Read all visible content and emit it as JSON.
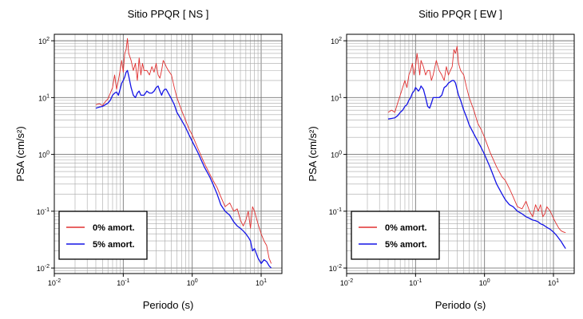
{
  "chart_data": [
    {
      "type": "line",
      "title": "Sitio PPQR [ NS ]",
      "xlabel": "Periodo (s)",
      "ylabel": "PSA (cm/s²)",
      "xscale": "log",
      "yscale": "log",
      "xlim": [
        0.01,
        20
      ],
      "ylim": [
        0.008,
        130
      ],
      "grid": true,
      "legend_position": "bottom-left",
      "xticks": [
        {
          "value": 0.01,
          "base": "10",
          "exp": "-2"
        },
        {
          "value": 0.1,
          "base": "10",
          "exp": "-1"
        },
        {
          "value": 1,
          "base": "10",
          "exp": "0"
        },
        {
          "value": 10,
          "base": "10",
          "exp": "1"
        }
      ],
      "yticks": [
        {
          "value": 0.01,
          "base": "10",
          "exp": "-2"
        },
        {
          "value": 0.1,
          "base": "10",
          "exp": "-1"
        },
        {
          "value": 1,
          "base": "10",
          "exp": "0"
        },
        {
          "value": 10,
          "base": "10",
          "exp": "1"
        },
        {
          "value": 100,
          "base": "10",
          "exp": "2"
        }
      ],
      "series": [
        {
          "name": "0% amort.",
          "color": "#e03030",
          "x": [
            0.04,
            0.045,
            0.05,
            0.055,
            0.06,
            0.065,
            0.07,
            0.075,
            0.08,
            0.085,
            0.09,
            0.095,
            0.1,
            0.105,
            0.11,
            0.115,
            0.12,
            0.13,
            0.14,
            0.15,
            0.16,
            0.17,
            0.18,
            0.19,
            0.2,
            0.22,
            0.24,
            0.26,
            0.28,
            0.3,
            0.32,
            0.34,
            0.36,
            0.38,
            0.4,
            0.42,
            0.45,
            0.5,
            0.55,
            0.6,
            0.7,
            0.8,
            0.9,
            1.0,
            1.2,
            1.5,
            1.8,
            2.0,
            2.3,
            2.6,
            3.0,
            3.5,
            4.0,
            4.5,
            5.0,
            5.5,
            6.0,
            6.5,
            7.0,
            7.5,
            8.0,
            9.0,
            10,
            11,
            12,
            13,
            14
          ],
          "y": [
            7.5,
            7.8,
            7.2,
            8.5,
            9.5,
            12,
            15,
            25,
            14,
            20,
            30,
            45,
            28,
            60,
            70,
            110,
            60,
            45,
            30,
            40,
            20,
            50,
            25,
            40,
            30,
            30,
            25,
            35,
            28,
            40,
            25,
            22,
            30,
            45,
            40,
            35,
            30,
            25,
            15,
            10,
            6,
            4,
            2.8,
            2.2,
            1.3,
            0.7,
            0.45,
            0.35,
            0.26,
            0.18,
            0.12,
            0.14,
            0.1,
            0.11,
            0.07,
            0.055,
            0.07,
            0.1,
            0.05,
            0.12,
            0.1,
            0.06,
            0.04,
            0.03,
            0.025,
            0.015,
            0.012
          ]
        },
        {
          "name": "5% amort.",
          "color": "#1414e6",
          "x": [
            0.04,
            0.045,
            0.05,
            0.055,
            0.06,
            0.065,
            0.07,
            0.075,
            0.08,
            0.085,
            0.09,
            0.095,
            0.1,
            0.105,
            0.11,
            0.115,
            0.12,
            0.13,
            0.14,
            0.15,
            0.16,
            0.17,
            0.18,
            0.19,
            0.2,
            0.22,
            0.24,
            0.26,
            0.28,
            0.3,
            0.32,
            0.34,
            0.36,
            0.38,
            0.4,
            0.42,
            0.45,
            0.5,
            0.55,
            0.6,
            0.7,
            0.8,
            0.9,
            1.0,
            1.2,
            1.5,
            1.8,
            2.0,
            2.3,
            2.6,
            3.0,
            3.5,
            4.0,
            4.5,
            5.0,
            5.5,
            6.0,
            6.5,
            7.0,
            7.5,
            8.0,
            9.0,
            10,
            11,
            12,
            13,
            14
          ],
          "y": [
            6.5,
            6.8,
            7.0,
            7.5,
            8.0,
            9.0,
            11,
            12,
            12.5,
            11,
            14,
            18,
            20,
            23,
            28,
            30,
            24,
            15,
            11,
            10,
            12,
            13,
            11,
            11,
            11,
            13,
            12,
            12,
            13,
            15,
            16,
            13,
            11,
            13,
            14,
            14,
            12,
            9.5,
            7.5,
            5.5,
            4,
            3,
            2.2,
            1.7,
            1.1,
            0.6,
            0.4,
            0.3,
            0.2,
            0.13,
            0.1,
            0.085,
            0.065,
            0.055,
            0.05,
            0.045,
            0.04,
            0.035,
            0.03,
            0.02,
            0.022,
            0.015,
            0.012,
            0.014,
            0.013,
            0.011,
            0.01
          ]
        }
      ]
    },
    {
      "type": "line",
      "title": "Sitio PPQR [ EW ]",
      "xlabel": "Periodo (s)",
      "ylabel": "PSA (cm/s²)",
      "xscale": "log",
      "yscale": "log",
      "xlim": [
        0.01,
        20
      ],
      "ylim": [
        0.008,
        130
      ],
      "grid": true,
      "legend_position": "bottom-left",
      "xticks": [
        {
          "value": 0.01,
          "base": "10",
          "exp": "-2"
        },
        {
          "value": 0.1,
          "base": "10",
          "exp": "-1"
        },
        {
          "value": 1,
          "base": "10",
          "exp": "0"
        },
        {
          "value": 10,
          "base": "10",
          "exp": "1"
        }
      ],
      "yticks": [
        {
          "value": 0.01,
          "base": "10",
          "exp": "-2"
        },
        {
          "value": 0.1,
          "base": "10",
          "exp": "-1"
        },
        {
          "value": 1,
          "base": "10",
          "exp": "0"
        },
        {
          "value": 10,
          "base": "10",
          "exp": "1"
        },
        {
          "value": 100,
          "base": "10",
          "exp": "2"
        }
      ],
      "series": [
        {
          "name": "0% amort.",
          "color": "#e03030",
          "x": [
            0.04,
            0.045,
            0.05,
            0.055,
            0.06,
            0.065,
            0.07,
            0.075,
            0.08,
            0.085,
            0.09,
            0.095,
            0.1,
            0.105,
            0.11,
            0.115,
            0.12,
            0.13,
            0.14,
            0.15,
            0.16,
            0.17,
            0.18,
            0.2,
            0.22,
            0.24,
            0.26,
            0.28,
            0.3,
            0.32,
            0.34,
            0.36,
            0.38,
            0.4,
            0.42,
            0.45,
            0.5,
            0.55,
            0.6,
            0.7,
            0.8,
            0.9,
            1.0,
            1.2,
            1.5,
            1.8,
            2.0,
            2.3,
            2.6,
            3.0,
            3.5,
            4.0,
            4.5,
            5.0,
            5.5,
            6.0,
            6.5,
            7.0,
            7.5,
            8.0,
            9.0,
            10,
            11,
            12,
            13,
            14,
            15
          ],
          "y": [
            5.5,
            6,
            5.5,
            8,
            11,
            15,
            20,
            15,
            25,
            30,
            40,
            25,
            35,
            60,
            40,
            25,
            45,
            35,
            25,
            30,
            30,
            20,
            25,
            45,
            30,
            25,
            20,
            35,
            25,
            30,
            35,
            70,
            60,
            80,
            40,
            30,
            25,
            15,
            10,
            6,
            3.5,
            2.7,
            2.0,
            1.1,
            0.6,
            0.4,
            0.35,
            0.25,
            0.18,
            0.12,
            0.11,
            0.15,
            0.1,
            0.08,
            0.13,
            0.1,
            0.13,
            0.08,
            0.09,
            0.12,
            0.1,
            0.075,
            0.06,
            0.05,
            0.045,
            0.043,
            0.042
          ]
        },
        {
          "name": "5% amort.",
          "color": "#1414e6",
          "x": [
            0.04,
            0.045,
            0.05,
            0.055,
            0.06,
            0.065,
            0.07,
            0.075,
            0.08,
            0.085,
            0.09,
            0.095,
            0.1,
            0.105,
            0.11,
            0.115,
            0.12,
            0.13,
            0.14,
            0.15,
            0.16,
            0.17,
            0.18,
            0.2,
            0.22,
            0.24,
            0.26,
            0.28,
            0.3,
            0.32,
            0.34,
            0.36,
            0.38,
            0.4,
            0.42,
            0.45,
            0.5,
            0.55,
            0.6,
            0.7,
            0.8,
            0.9,
            1.0,
            1.2,
            1.5,
            1.8,
            2.0,
            2.3,
            2.6,
            3.0,
            3.5,
            4.0,
            4.5,
            5.0,
            5.5,
            6.0,
            6.5,
            7.0,
            7.5,
            8.0,
            9.0,
            10,
            11,
            12,
            13,
            14,
            15
          ],
          "y": [
            4.2,
            4.3,
            4.4,
            4.8,
            5.5,
            6.0,
            7.0,
            7.5,
            9.0,
            10,
            12,
            13,
            15,
            14,
            13,
            14,
            16,
            14,
            10,
            7,
            6.5,
            8,
            10,
            10,
            10,
            11,
            15,
            16,
            18,
            19,
            20,
            20,
            18,
            14,
            11,
            9,
            6,
            4.5,
            3.3,
            2.3,
            1.7,
            1.3,
            1.0,
            0.6,
            0.3,
            0.2,
            0.16,
            0.13,
            0.12,
            0.1,
            0.09,
            0.08,
            0.075,
            0.07,
            0.068,
            0.065,
            0.06,
            0.058,
            0.055,
            0.052,
            0.048,
            0.043,
            0.038,
            0.033,
            0.029,
            0.025,
            0.022
          ]
        }
      ]
    }
  ]
}
